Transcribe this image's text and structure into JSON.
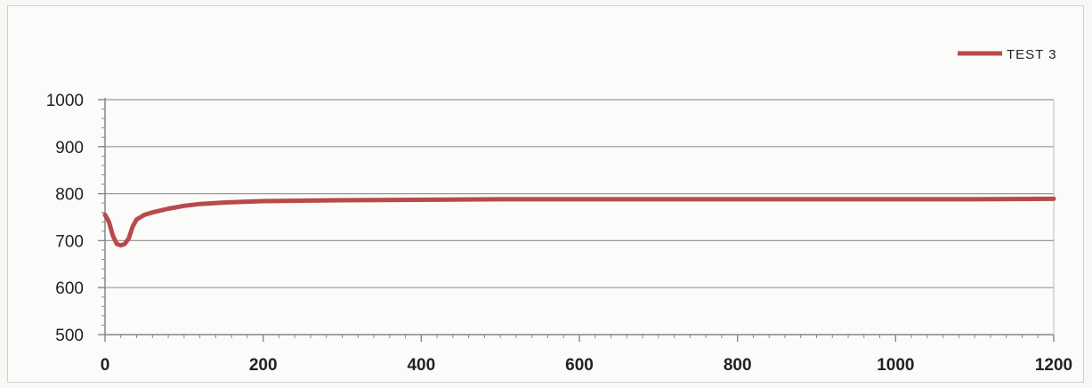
{
  "chart_data": {
    "type": "line",
    "title": "",
    "xlabel": "",
    "ylabel": "",
    "xlim": [
      0,
      1200
    ],
    "ylim": [
      500,
      1000
    ],
    "x_ticks": [
      0,
      200,
      400,
      600,
      800,
      1000,
      1200
    ],
    "y_ticks": [
      500,
      600,
      700,
      800,
      900,
      1000
    ],
    "x_tick_labels": [
      "0",
      "200",
      "400",
      "600",
      "800",
      "1000",
      "1200"
    ],
    "y_tick_labels": [
      "500",
      "600",
      "700",
      "800",
      "900",
      "1000"
    ],
    "grid": "horizontal",
    "legend_position": "top-right",
    "colors": {
      "series": "#b84a4a",
      "grid": "#9a9a9a",
      "axis": "#888888"
    },
    "series": [
      {
        "name": "TEST 3",
        "x": [
          0,
          5,
          10,
          15,
          20,
          25,
          30,
          35,
          40,
          50,
          60,
          80,
          100,
          120,
          150,
          180,
          200,
          250,
          300,
          400,
          500,
          600,
          700,
          800,
          900,
          1000,
          1100,
          1200
        ],
        "y": [
          755,
          740,
          710,
          693,
          690,
          693,
          705,
          730,
          745,
          755,
          760,
          768,
          774,
          778,
          781,
          783,
          784,
          785,
          786,
          787,
          788,
          788,
          788,
          788,
          788,
          788,
          788,
          789
        ]
      }
    ]
  }
}
